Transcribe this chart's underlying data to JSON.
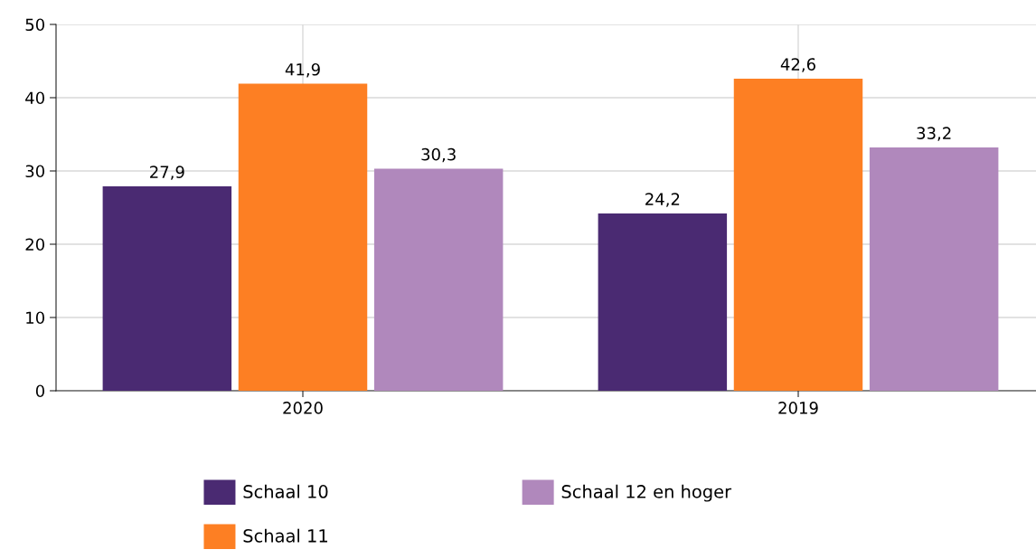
{
  "chart_data": {
    "type": "bar",
    "categories": [
      "2020",
      "2019"
    ],
    "series": [
      {
        "name": "Schaal 10",
        "color": "#4a2a72",
        "values": [
          27.9,
          24.2
        ],
        "value_labels": [
          "27,9",
          "24,2"
        ]
      },
      {
        "name": "Schaal 11",
        "color": "#fd7f23",
        "values": [
          41.9,
          42.6
        ],
        "value_labels": [
          "41,9",
          "42,6"
        ]
      },
      {
        "name": "Schaal 12 en hoger",
        "color": "#b088bc",
        "values": [
          30.3,
          33.2
        ],
        "value_labels": [
          "30,3",
          "33,2"
        ]
      }
    ],
    "ylim": [
      0,
      50
    ],
    "yticks": [
      0,
      10,
      20,
      30,
      40,
      50
    ],
    "grid": true,
    "legend": "bottom"
  }
}
